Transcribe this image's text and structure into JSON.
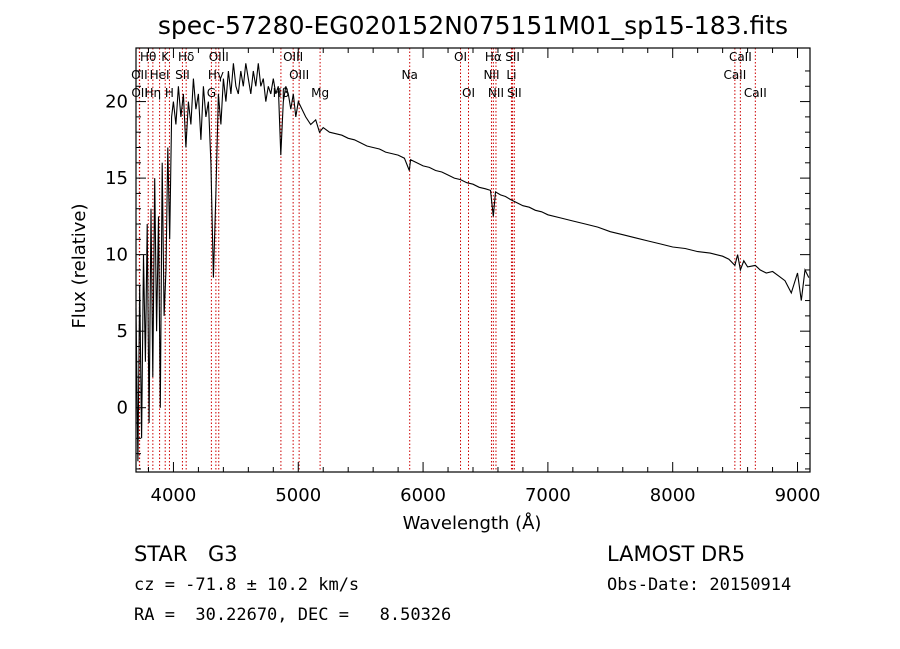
{
  "chart_data": {
    "type": "line",
    "title": "spec-57280-EG020152N075151M01_sp15-183.fits",
    "xlabel": "Wavelength (Å)",
    "ylabel": "Flux (relative)",
    "xlim": [
      3700,
      9100
    ],
    "ylim": [
      -4.2,
      23.5
    ],
    "x_ticks": [
      4000,
      5000,
      6000,
      7000,
      8000,
      9000
    ],
    "y_ticks": [
      0,
      5,
      10,
      15,
      20
    ],
    "grid": false,
    "series": [
      {
        "x": [
          3700,
          3715,
          3730,
          3745,
          3760,
          3775,
          3790,
          3805,
          3820,
          3835,
          3850,
          3865,
          3880,
          3895,
          3910,
          3925,
          3940,
          3955,
          3970,
          3985,
          4000,
          4020,
          4040,
          4060,
          4080,
          4100,
          4120,
          4140,
          4160,
          4180,
          4200,
          4220,
          4240,
          4260,
          4280,
          4300,
          4320,
          4340,
          4360,
          4380,
          4400,
          4420,
          4440,
          4460,
          4480,
          4500,
          4520,
          4540,
          4560,
          4580,
          4600,
          4620,
          4640,
          4660,
          4680,
          4700,
          4720,
          4740,
          4760,
          4780,
          4800,
          4820,
          4840,
          4860,
          4880,
          4900,
          4920,
          4940,
          4960,
          4980,
          5000,
          5030,
          5060,
          5100,
          5140,
          5170,
          5200,
          5250,
          5300,
          5350,
          5400,
          5450,
          5500,
          5550,
          5600,
          5650,
          5700,
          5750,
          5800,
          5850,
          5890,
          5900,
          5950,
          6000,
          6050,
          6100,
          6150,
          6200,
          6250,
          6300,
          6350,
          6400,
          6450,
          6500,
          6540,
          6563,
          6580,
          6620,
          6660,
          6700,
          6750,
          6800,
          6850,
          6900,
          6950,
          7000,
          7100,
          7200,
          7300,
          7400,
          7500,
          7600,
          7700,
          7800,
          7900,
          8000,
          8100,
          8200,
          8300,
          8400,
          8450,
          8498,
          8520,
          8542,
          8570,
          8600,
          8662,
          8700,
          8750,
          8800,
          8850,
          8900,
          8950,
          9000,
          9030,
          9060,
          9090
        ],
        "y": [
          6.5,
          -3.5,
          8.0,
          -2.0,
          10.0,
          3.0,
          12.0,
          -1.0,
          13.0,
          2.0,
          15.0,
          5.0,
          12.5,
          0.0,
          16.0,
          6.0,
          9.0,
          17.0,
          11.0,
          19.0,
          20.0,
          18.5,
          21.0,
          19.0,
          20.5,
          17.0,
          20.0,
          18.5,
          21.5,
          19.5,
          20.5,
          17.5,
          21.0,
          19.0,
          20.0,
          16.0,
          8.5,
          14.0,
          20.5,
          18.5,
          21.5,
          20.0,
          22.0,
          20.5,
          22.5,
          21.0,
          20.5,
          22.0,
          21.0,
          22.5,
          21.5,
          20.5,
          22.0,
          21.0,
          22.5,
          21.0,
          21.5,
          20.0,
          21.0,
          20.5,
          21.5,
          20.5,
          21.0,
          16.5,
          20.0,
          21.0,
          20.5,
          19.5,
          20.5,
          19.0,
          20.0,
          19.5,
          19.0,
          18.5,
          18.8,
          18.0,
          18.3,
          18.0,
          17.9,
          17.8,
          17.6,
          17.5,
          17.3,
          17.1,
          17.0,
          16.9,
          16.7,
          16.6,
          16.5,
          16.3,
          15.5,
          16.2,
          16.0,
          15.8,
          15.7,
          15.5,
          15.4,
          15.2,
          15.0,
          14.9,
          14.7,
          14.6,
          14.4,
          14.3,
          14.2,
          12.5,
          14.1,
          13.9,
          13.8,
          13.6,
          13.4,
          13.2,
          13.1,
          12.9,
          12.8,
          12.6,
          12.4,
          12.2,
          12.0,
          11.8,
          11.5,
          11.3,
          11.1,
          10.9,
          10.7,
          10.5,
          10.4,
          10.2,
          10.1,
          9.9,
          9.7,
          9.3,
          10.0,
          9.0,
          9.6,
          9.2,
          9.3,
          9.0,
          8.8,
          8.9,
          8.6,
          8.3,
          7.5,
          8.8,
          7.0,
          9.0,
          8.5
        ]
      }
    ],
    "line_labels": [
      {
        "label": "Hθ",
        "row": 1,
        "wavelength": 3798
      },
      {
        "label": "K",
        "row": 1,
        "wavelength": 3934
      },
      {
        "label": "Hδ",
        "row": 1,
        "wavelength": 4102
      },
      {
        "label": "OIII",
        "row": 1,
        "wavelength": 4363
      },
      {
        "label": "OIII",
        "row": 1,
        "wavelength": 4959
      },
      {
        "label": "OI",
        "row": 1,
        "wavelength": 6300
      },
      {
        "label": "Hα",
        "row": 1,
        "wavelength": 6563
      },
      {
        "label": "SII",
        "row": 1,
        "wavelength": 6717
      },
      {
        "label": "CaII",
        "row": 1,
        "wavelength": 8542
      },
      {
        "label": "OII",
        "row": 2,
        "wavelength": 3727
      },
      {
        "label": "HeI",
        "row": 2,
        "wavelength": 3889
      },
      {
        "label": "SII",
        "row": 2,
        "wavelength": 4072
      },
      {
        "label": "Hγ",
        "row": 2,
        "wavelength": 4340
      },
      {
        "label": "OIII",
        "row": 2,
        "wavelength": 5007
      },
      {
        "label": "Na",
        "row": 2,
        "wavelength": 5893
      },
      {
        "label": "NII",
        "row": 2,
        "wavelength": 6548
      },
      {
        "label": "Li",
        "row": 2,
        "wavelength": 6708
      },
      {
        "label": "CaII",
        "row": 2,
        "wavelength": 8498
      },
      {
        "label": "OII",
        "row": 3,
        "wavelength": 3729
      },
      {
        "label": "Hη",
        "row": 3,
        "wavelength": 3835
      },
      {
        "label": "H",
        "row": 3,
        "wavelength": 3968
      },
      {
        "label": "G",
        "row": 3,
        "wavelength": 4304
      },
      {
        "label": "Hβ",
        "row": 3,
        "wavelength": 4861
      },
      {
        "label": "Mg",
        "row": 3,
        "wavelength": 5175
      },
      {
        "label": "OI",
        "row": 3,
        "wavelength": 6364
      },
      {
        "label": "NII",
        "row": 3,
        "wavelength": 6584
      },
      {
        "label": "SII",
        "row": 3,
        "wavelength": 6731
      },
      {
        "label": "CaII",
        "row": 3,
        "wavelength": 8662
      }
    ]
  },
  "info": {
    "class_label": "STAR",
    "subclass_label": "G3",
    "survey": "LAMOST DR5",
    "cz": "cz = -71.8 ± 10.2 km/s",
    "obs_date": "Obs-Date: 20150914",
    "coords": "RA =  30.22670, DEC =   8.50326"
  }
}
